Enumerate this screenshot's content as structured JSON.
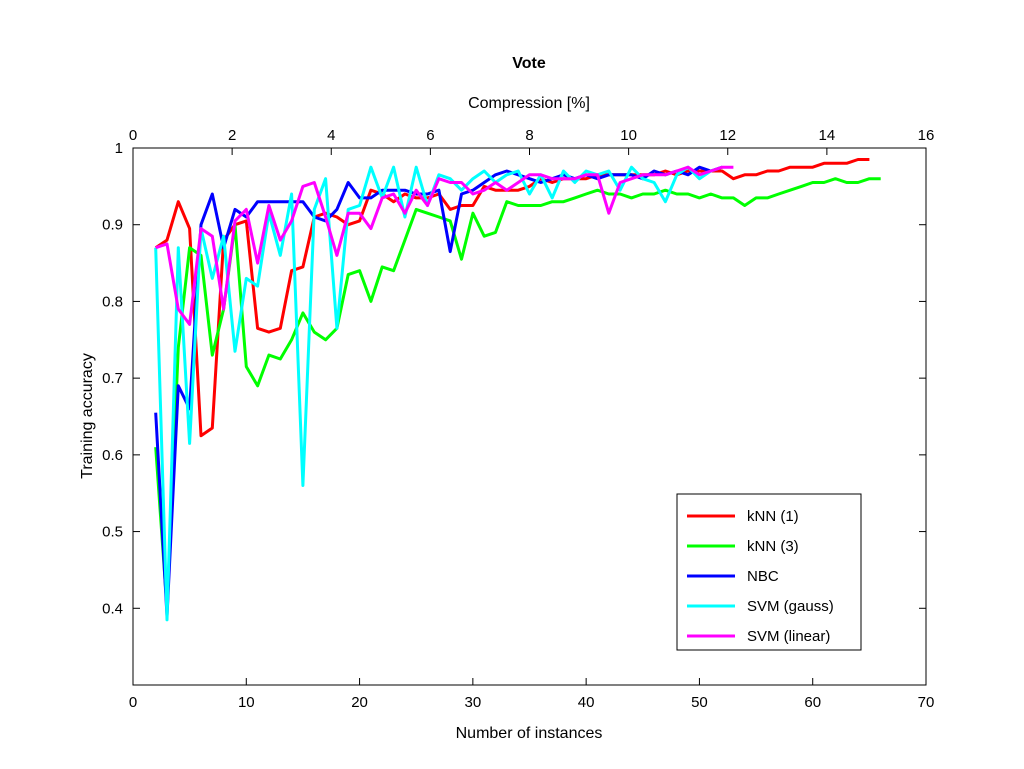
{
  "chart_data": {
    "type": "line",
    "title": "Vote",
    "xlabel": "Number of instances",
    "ylabel": "Training accuracy",
    "x2label": "Compression [%]",
    "xlim": [
      0,
      70
    ],
    "ylim": [
      0.3,
      1
    ],
    "x2lim": [
      0,
      16
    ],
    "xticks": [
      0,
      10,
      20,
      30,
      40,
      50,
      60,
      70
    ],
    "yticks": [
      0.4,
      0.5,
      0.6,
      0.7,
      0.8,
      0.9,
      1
    ],
    "x2ticks": [
      0,
      2,
      4,
      6,
      8,
      10,
      12,
      14,
      16
    ],
    "grid": false,
    "legend_position": "bottom-right",
    "series": [
      {
        "name": "kNN (1)",
        "color": "#ff0000",
        "points": [
          [
            2,
            0.87
          ],
          [
            3,
            0.88
          ],
          [
            4,
            0.93
          ],
          [
            5,
            0.895
          ],
          [
            6,
            0.625
          ],
          [
            7,
            0.635
          ],
          [
            8,
            0.88
          ],
          [
            9,
            0.9
          ],
          [
            10,
            0.905
          ],
          [
            11,
            0.765
          ],
          [
            12,
            0.76
          ],
          [
            13,
            0.765
          ],
          [
            14,
            0.84
          ],
          [
            15,
            0.845
          ],
          [
            16,
            0.91
          ],
          [
            17,
            0.915
          ],
          [
            18,
            0.91
          ],
          [
            19,
            0.9
          ],
          [
            20,
            0.905
          ],
          [
            21,
            0.945
          ],
          [
            22,
            0.94
          ],
          [
            23,
            0.93
          ],
          [
            24,
            0.94
          ],
          [
            25,
            0.935
          ],
          [
            26,
            0.935
          ],
          [
            27,
            0.94
          ],
          [
            28,
            0.92
          ],
          [
            29,
            0.925
          ],
          [
            30,
            0.925
          ],
          [
            31,
            0.95
          ],
          [
            32,
            0.945
          ],
          [
            33,
            0.945
          ],
          [
            34,
            0.945
          ],
          [
            35,
            0.95
          ],
          [
            36,
            0.96
          ],
          [
            37,
            0.955
          ],
          [
            38,
            0.96
          ],
          [
            39,
            0.96
          ],
          [
            40,
            0.96
          ],
          [
            41,
            0.965
          ],
          [
            42,
            0.965
          ],
          [
            43,
            0.965
          ],
          [
            44,
            0.965
          ],
          [
            45,
            0.965
          ],
          [
            46,
            0.965
          ],
          [
            47,
            0.97
          ],
          [
            48,
            0.965
          ],
          [
            49,
            0.97
          ],
          [
            50,
            0.97
          ],
          [
            51,
            0.97
          ],
          [
            52,
            0.97
          ],
          [
            53,
            0.96
          ],
          [
            54,
            0.965
          ],
          [
            55,
            0.965
          ],
          [
            56,
            0.97
          ],
          [
            57,
            0.97
          ],
          [
            58,
            0.975
          ],
          [
            59,
            0.975
          ],
          [
            60,
            0.975
          ],
          [
            61,
            0.98
          ],
          [
            62,
            0.98
          ],
          [
            63,
            0.98
          ],
          [
            64,
            0.985
          ],
          [
            65,
            0.985
          ]
        ]
      },
      {
        "name": "kNN (3)",
        "color": "#00ff00",
        "points": [
          [
            2,
            0.61
          ],
          [
            3,
            0.4
          ],
          [
            4,
            0.74
          ],
          [
            5,
            0.87
          ],
          [
            6,
            0.86
          ],
          [
            7,
            0.73
          ],
          [
            8,
            0.79
          ],
          [
            9,
            0.9
          ],
          [
            10,
            0.715
          ],
          [
            11,
            0.69
          ],
          [
            12,
            0.73
          ],
          [
            13,
            0.725
          ],
          [
            14,
            0.75
          ],
          [
            15,
            0.785
          ],
          [
            16,
            0.76
          ],
          [
            17,
            0.75
          ],
          [
            18,
            0.765
          ],
          [
            19,
            0.835
          ],
          [
            20,
            0.84
          ],
          [
            21,
            0.8
          ],
          [
            22,
            0.845
          ],
          [
            23,
            0.84
          ],
          [
            24,
            0.88
          ],
          [
            25,
            0.92
          ],
          [
            26,
            0.915
          ],
          [
            27,
            0.91
          ],
          [
            28,
            0.905
          ],
          [
            29,
            0.855
          ],
          [
            30,
            0.915
          ],
          [
            31,
            0.885
          ],
          [
            32,
            0.89
          ],
          [
            33,
            0.93
          ],
          [
            34,
            0.925
          ],
          [
            35,
            0.925
          ],
          [
            36,
            0.925
          ],
          [
            37,
            0.93
          ],
          [
            38,
            0.93
          ],
          [
            39,
            0.935
          ],
          [
            40,
            0.94
          ],
          [
            41,
            0.945
          ],
          [
            42,
            0.94
          ],
          [
            43,
            0.94
          ],
          [
            44,
            0.935
          ],
          [
            45,
            0.94
          ],
          [
            46,
            0.94
          ],
          [
            47,
            0.945
          ],
          [
            48,
            0.94
          ],
          [
            49,
            0.94
          ],
          [
            50,
            0.935
          ],
          [
            51,
            0.94
          ],
          [
            52,
            0.935
          ],
          [
            53,
            0.935
          ],
          [
            54,
            0.925
          ],
          [
            55,
            0.935
          ],
          [
            56,
            0.935
          ],
          [
            57,
            0.94
          ],
          [
            58,
            0.945
          ],
          [
            59,
            0.95
          ],
          [
            60,
            0.955
          ],
          [
            61,
            0.955
          ],
          [
            62,
            0.96
          ],
          [
            63,
            0.955
          ],
          [
            64,
            0.955
          ],
          [
            65,
            0.96
          ],
          [
            66,
            0.96
          ]
        ]
      },
      {
        "name": "NBC",
        "color": "#0000ff",
        "points": [
          [
            2,
            0.655
          ],
          [
            3,
            0.39
          ],
          [
            4,
            0.69
          ],
          [
            5,
            0.66
          ],
          [
            6,
            0.9
          ],
          [
            7,
            0.94
          ],
          [
            8,
            0.87
          ],
          [
            9,
            0.92
          ],
          [
            10,
            0.91
          ],
          [
            11,
            0.93
          ],
          [
            12,
            0.93
          ],
          [
            13,
            0.93
          ],
          [
            14,
            0.93
          ],
          [
            15,
            0.93
          ],
          [
            16,
            0.91
          ],
          [
            17,
            0.905
          ],
          [
            18,
            0.92
          ],
          [
            19,
            0.955
          ],
          [
            20,
            0.935
          ],
          [
            21,
            0.935
          ],
          [
            22,
            0.945
          ],
          [
            23,
            0.945
          ],
          [
            24,
            0.945
          ],
          [
            25,
            0.94
          ],
          [
            26,
            0.94
          ],
          [
            27,
            0.945
          ],
          [
            28,
            0.865
          ],
          [
            29,
            0.94
          ],
          [
            30,
            0.945
          ],
          [
            31,
            0.955
          ],
          [
            32,
            0.965
          ],
          [
            33,
            0.97
          ],
          [
            34,
            0.965
          ],
          [
            35,
            0.96
          ],
          [
            36,
            0.955
          ],
          [
            37,
            0.96
          ],
          [
            38,
            0.965
          ],
          [
            39,
            0.96
          ],
          [
            40,
            0.965
          ],
          [
            41,
            0.96
          ],
          [
            42,
            0.965
          ],
          [
            43,
            0.965
          ],
          [
            44,
            0.965
          ],
          [
            45,
            0.96
          ],
          [
            46,
            0.97
          ],
          [
            47,
            0.965
          ],
          [
            48,
            0.97
          ],
          [
            49,
            0.965
          ],
          [
            50,
            0.975
          ],
          [
            51,
            0.97
          ],
          [
            52,
            0.975
          ]
        ]
      },
      {
        "name": "SVM (gauss)",
        "color": "#00ffff",
        "points": [
          [
            2,
            0.87
          ],
          [
            3,
            0.385
          ],
          [
            4,
            0.87
          ],
          [
            5,
            0.615
          ],
          [
            6,
            0.895
          ],
          [
            7,
            0.83
          ],
          [
            8,
            0.885
          ],
          [
            9,
            0.735
          ],
          [
            10,
            0.83
          ],
          [
            11,
            0.82
          ],
          [
            12,
            0.915
          ],
          [
            13,
            0.86
          ],
          [
            14,
            0.94
          ],
          [
            15,
            0.56
          ],
          [
            16,
            0.92
          ],
          [
            17,
            0.96
          ],
          [
            18,
            0.765
          ],
          [
            19,
            0.92
          ],
          [
            20,
            0.925
          ],
          [
            21,
            0.975
          ],
          [
            22,
            0.935
          ],
          [
            23,
            0.975
          ],
          [
            24,
            0.91
          ],
          [
            25,
            0.975
          ],
          [
            26,
            0.925
          ],
          [
            27,
            0.965
          ],
          [
            28,
            0.96
          ],
          [
            29,
            0.945
          ],
          [
            30,
            0.96
          ],
          [
            31,
            0.97
          ],
          [
            32,
            0.955
          ],
          [
            33,
            0.965
          ],
          [
            34,
            0.97
          ],
          [
            35,
            0.94
          ],
          [
            36,
            0.965
          ],
          [
            37,
            0.935
          ],
          [
            38,
            0.97
          ],
          [
            39,
            0.955
          ],
          [
            40,
            0.97
          ],
          [
            41,
            0.965
          ],
          [
            42,
            0.97
          ],
          [
            43,
            0.945
          ],
          [
            44,
            0.975
          ],
          [
            45,
            0.96
          ],
          [
            46,
            0.955
          ],
          [
            47,
            0.93
          ],
          [
            48,
            0.965
          ],
          [
            49,
            0.975
          ],
          [
            50,
            0.96
          ],
          [
            51,
            0.97
          ],
          [
            52,
            0.975
          ]
        ]
      },
      {
        "name": "SVM (linear)",
        "color": "#ff00ff",
        "points": [
          [
            2,
            0.87
          ],
          [
            3,
            0.875
          ],
          [
            4,
            0.79
          ],
          [
            5,
            0.77
          ],
          [
            6,
            0.895
          ],
          [
            7,
            0.885
          ],
          [
            8,
            0.79
          ],
          [
            9,
            0.905
          ],
          [
            10,
            0.92
          ],
          [
            11,
            0.85
          ],
          [
            12,
            0.925
          ],
          [
            13,
            0.88
          ],
          [
            14,
            0.905
          ],
          [
            15,
            0.95
          ],
          [
            16,
            0.955
          ],
          [
            17,
            0.91
          ],
          [
            18,
            0.86
          ],
          [
            19,
            0.915
          ],
          [
            20,
            0.915
          ],
          [
            21,
            0.895
          ],
          [
            22,
            0.935
          ],
          [
            23,
            0.94
          ],
          [
            24,
            0.915
          ],
          [
            25,
            0.945
          ],
          [
            26,
            0.925
          ],
          [
            27,
            0.96
          ],
          [
            28,
            0.955
          ],
          [
            29,
            0.955
          ],
          [
            30,
            0.94
          ],
          [
            31,
            0.945
          ],
          [
            32,
            0.955
          ],
          [
            33,
            0.945
          ],
          [
            34,
            0.955
          ],
          [
            35,
            0.965
          ],
          [
            36,
            0.965
          ],
          [
            37,
            0.96
          ],
          [
            38,
            0.96
          ],
          [
            39,
            0.96
          ],
          [
            40,
            0.965
          ],
          [
            41,
            0.965
          ],
          [
            42,
            0.915
          ],
          [
            43,
            0.955
          ],
          [
            44,
            0.96
          ],
          [
            45,
            0.965
          ],
          [
            46,
            0.965
          ],
          [
            47,
            0.965
          ],
          [
            48,
            0.97
          ],
          [
            49,
            0.975
          ],
          [
            50,
            0.965
          ],
          [
            51,
            0.97
          ],
          [
            52,
            0.975
          ],
          [
            53,
            0.975
          ]
        ]
      }
    ]
  }
}
